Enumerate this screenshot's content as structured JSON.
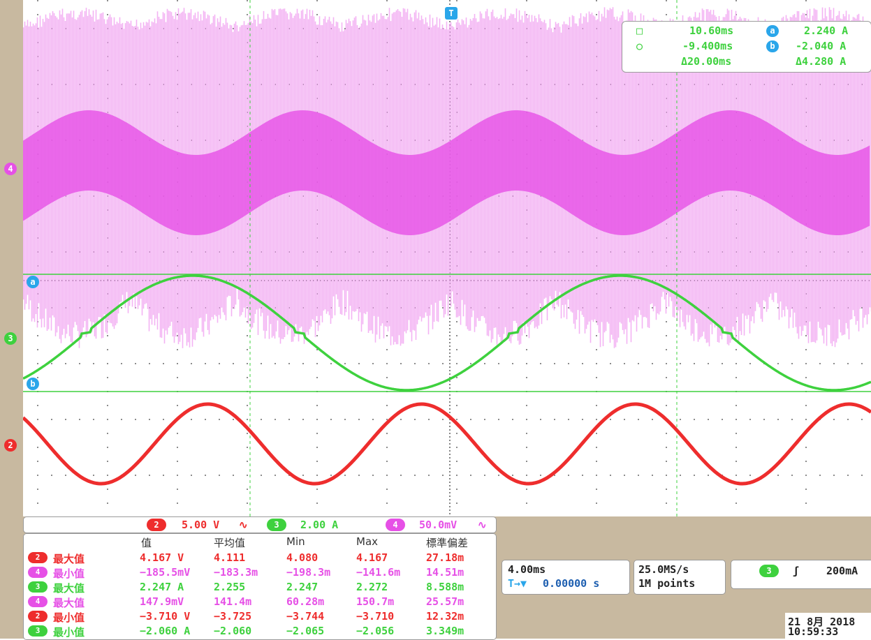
{
  "colors": {
    "ch2": "#ee2d2d",
    "ch3": "#3ed13e",
    "ch4": "#e650e6",
    "cursor_marker": "#2aa6ea",
    "grid": "#8c8c8c",
    "frame": "#c8b9a0"
  },
  "channel_markers": {
    "ch4": "4",
    "ch3": "3",
    "ch2": "2",
    "cursor_a": "a",
    "cursor_b": "b",
    "trigger": "T"
  },
  "cursors": {
    "time1_symbol": "□",
    "time2_symbol": "○",
    "time1": "10.60ms",
    "time2": "-9.400ms",
    "delta_time": "Δ20.00ms",
    "a_symbol": "a",
    "b_symbol": "b",
    "a_value": "2.240 A",
    "b_value": "-2.040 A",
    "delta_value": "Δ4.280 A"
  },
  "scales": {
    "ch2": {
      "num": "2",
      "value": "5.00 V",
      "coupling": "∿"
    },
    "ch3": {
      "num": "3",
      "value": "2.00 A",
      "coupling": ""
    },
    "ch4": {
      "num": "4",
      "value": "50.0mV",
      "coupling": "∿"
    }
  },
  "measurements": {
    "headers": [
      "值",
      "平均值",
      "Min",
      "Max",
      "標準偏差"
    ],
    "rows": [
      {
        "ch": "2",
        "label": "最大值",
        "values": [
          "4.167 V",
          "4.111",
          "4.080",
          "4.167",
          "27.18m"
        ]
      },
      {
        "ch": "4",
        "label": "最小值",
        "values": [
          "−185.5mV",
          "−183.3m",
          "−198.3m",
          "−141.6m",
          "14.51m"
        ]
      },
      {
        "ch": "3",
        "label": "最大值",
        "values": [
          "2.247 A",
          "2.255",
          "2.247",
          "2.272",
          "8.588m"
        ]
      },
      {
        "ch": "4",
        "label": "最大值",
        "values": [
          "147.9mV",
          "141.4m",
          "60.28m",
          "150.7m",
          "25.57m"
        ]
      },
      {
        "ch": "2",
        "label": "最小值",
        "values": [
          "−3.710 V",
          "−3.725",
          "−3.744",
          "−3.710",
          "12.32m"
        ]
      },
      {
        "ch": "3",
        "label": "最小值",
        "values": [
          "−2.060 A",
          "−2.060",
          "−2.065",
          "−2.056",
          "3.349m"
        ]
      }
    ]
  },
  "horizontal": {
    "timebase": "4.00ms",
    "position_icon": "T→▼",
    "position": "0.00000 s"
  },
  "acquisition": {
    "sample_rate": "25.0MS/s",
    "record_length": "1M points"
  },
  "trigger": {
    "source": "3",
    "slope": "ʃ",
    "level": "200mA"
  },
  "datetime": {
    "date": "21 8月  2018",
    "time": "10:59:33"
  }
}
